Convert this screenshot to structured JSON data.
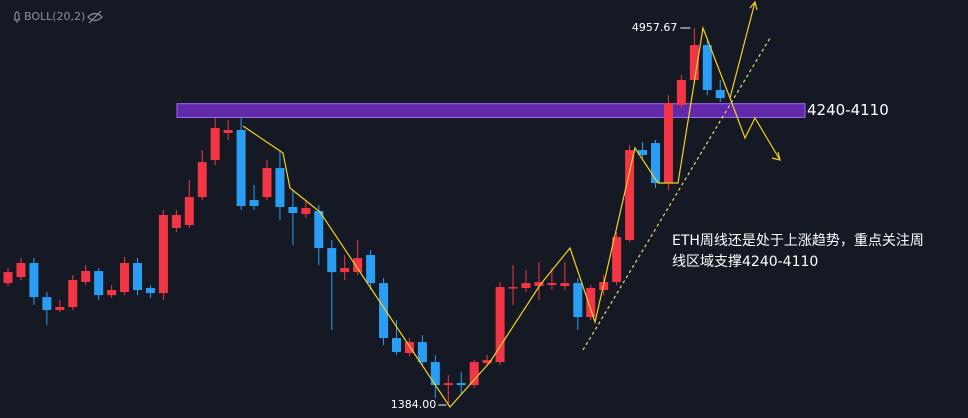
{
  "chart_data": {
    "type": "candlestick",
    "indicator": "BOLL(20,2)",
    "ylim": [
      1261,
      5223
    ],
    "up_color": "#f23645",
    "down_color": "#2a9df4",
    "open": [
      2540,
      2597,
      2730,
      2407,
      2284,
      2313,
      2550,
      2654,
      2426,
      2455,
      2730,
      2493,
      2445,
      3062,
      3090,
      3355,
      3706,
      3962,
      3991,
      3327,
      3355,
      3630,
      3261,
      3194,
      3223,
      2872,
      2644,
      2644,
      2806,
      2540,
      2019,
      1877,
      1981,
      1791,
      1573,
      1592,
      1573,
      1782,
      1791,
      2493,
      2493,
      2512,
      2521,
      2512,
      2540,
      2218,
      2474,
      2550,
      2948,
      3801,
      3867,
      3488,
      4228,
      4465,
      4796,
      4370
    ],
    "high": [
      2682,
      2777,
      2777,
      2455,
      2379,
      2616,
      2711,
      2682,
      2521,
      2787,
      2777,
      2521,
      3232,
      3232,
      3517,
      3801,
      4104,
      4085,
      4104,
      3469,
      3706,
      3801,
      3422,
      3327,
      3280,
      2948,
      2806,
      2948,
      2853,
      2588,
      2189,
      2019,
      2047,
      1858,
      1668,
      1696,
      1810,
      1858,
      2550,
      2711,
      2663,
      2739,
      2682,
      2739,
      2588,
      2521,
      2616,
      3024,
      3848,
      3877,
      3896,
      4322,
      4512,
      4957.67,
      4844,
      4465
    ],
    "low": [
      2512,
      2569,
      2332,
      2142,
      2265,
      2284,
      2521,
      2379,
      2398,
      2426,
      2426,
      2398,
      2379,
      3024,
      3062,
      3327,
      3659,
      3896,
      3232,
      3232,
      3327,
      3137,
      2900,
      3156,
      2711,
      2095,
      2569,
      2616,
      2474,
      1952,
      1858,
      1848,
      1763,
      1450,
      1384,
      1478,
      1545,
      1753,
      1763,
      2332,
      2455,
      2379,
      2474,
      2474,
      2095,
      2189,
      2426,
      2521,
      2929,
      3725,
      3441,
      3422,
      4199,
      4417,
      4322,
      4256
    ],
    "close": [
      2644,
      2730,
      2407,
      2284,
      2313,
      2569,
      2654,
      2426,
      2474,
      2730,
      2474,
      2445,
      3185,
      3185,
      3355,
      3687,
      4010,
      3991,
      3270,
      3270,
      3630,
      3261,
      3204,
      3251,
      2872,
      2644,
      2682,
      2777,
      2540,
      2019,
      1886,
      1981,
      1791,
      1573,
      1592,
      1573,
      1791,
      1810,
      2502,
      2502,
      2540,
      2550,
      2540,
      2540,
      2218,
      2493,
      2550,
      2976,
      3801,
      3754,
      3488,
      4247,
      4465,
      4796,
      4370,
      4294
    ],
    "max_label": {
      "value": 4957.67,
      "label": "4957.67"
    },
    "min_label": {
      "value": 1384,
      "label": "1384.00"
    },
    "zone": {
      "high": 4240,
      "low": 4110,
      "label": "4240-4110",
      "color": "#7b2fd6"
    },
    "annotation": [
      "ETH周线还是处于上涨趋势，重点关注周",
      "线区域支撑4240-4110"
    ]
  }
}
